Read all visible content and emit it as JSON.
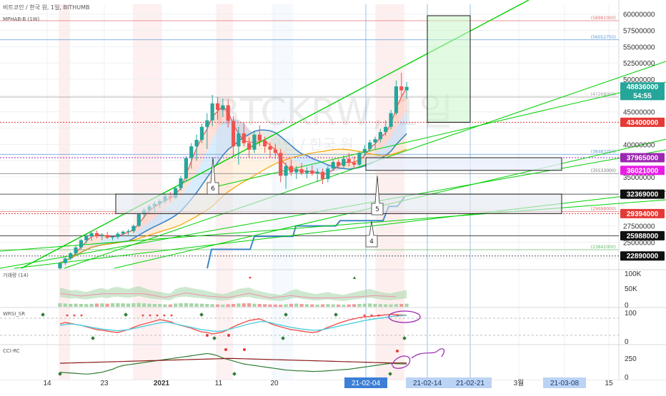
{
  "header": {
    "symbol_line": "비트코인 / 한국 원, 1일, BITHUMB",
    "indicator_line": "MPHAB-B (1W)"
  },
  "watermark": {
    "symbol": "BTCKRW, 1일",
    "subtitle": "비트코인 / 한국 원"
  },
  "chart_data": [
    {
      "type": "candlestick",
      "panel": "price",
      "ylim": [
        21000000,
        61500000
      ],
      "y_ticks": [
        22500000,
        25000000,
        27500000,
        30000000,
        32500000,
        35000000,
        37500000,
        40000000,
        42500000,
        45000000,
        47500000,
        50000000,
        52500000,
        55000000,
        57500000,
        60000000
      ],
      "y_tick_labels": [
        "",
        "25000000",
        "27500000",
        "",
        "",
        "35000000",
        "",
        "40000000",
        "",
        "45000000",
        "47500000",
        "50000000",
        "52500000",
        "55000000",
        "57500000",
        "60000000"
      ],
      "x_tick_labels": [
        "14",
        "23",
        "2021",
        "11",
        "20",
        "21-02-04",
        "21-02-14",
        "21-02-21",
        "3월",
        "21-03-08",
        "15"
      ],
      "candles": [
        {
          "o": 21000000,
          "h": 22000000,
          "l": 20800000,
          "c": 21800000
        },
        {
          "o": 21800000,
          "h": 22800000,
          "l": 21500000,
          "c": 22500000
        },
        {
          "o": 22500000,
          "h": 23500000,
          "l": 22200000,
          "c": 23300000
        },
        {
          "o": 23300000,
          "h": 24500000,
          "l": 23000000,
          "c": 24200000
        },
        {
          "o": 24200000,
          "h": 25500000,
          "l": 23800000,
          "c": 25300000
        },
        {
          "o": 25300000,
          "h": 26200000,
          "l": 24800000,
          "c": 25900000
        },
        {
          "o": 25900000,
          "h": 26700000,
          "l": 25200000,
          "c": 26400000
        },
        {
          "o": 26400000,
          "h": 26800000,
          "l": 25600000,
          "c": 25900000
        },
        {
          "o": 25900000,
          "h": 26400000,
          "l": 25300000,
          "c": 26100000
        },
        {
          "o": 26100000,
          "h": 26600000,
          "l": 25500000,
          "c": 25700000
        },
        {
          "o": 25700000,
          "h": 26000000,
          "l": 25300000,
          "c": 25800000
        },
        {
          "o": 25800000,
          "h": 26600000,
          "l": 25500000,
          "c": 26300000
        },
        {
          "o": 26300000,
          "h": 26800000,
          "l": 25900000,
          "c": 26600000
        },
        {
          "o": 26600000,
          "h": 27000000,
          "l": 26100000,
          "c": 26700000
        },
        {
          "o": 26700000,
          "h": 27700000,
          "l": 26400000,
          "c": 27500000
        },
        {
          "o": 27500000,
          "h": 29500000,
          "l": 27300000,
          "c": 29300000
        },
        {
          "o": 29300000,
          "h": 30300000,
          "l": 28700000,
          "c": 29900000
        },
        {
          "o": 29900000,
          "h": 30800000,
          "l": 29400000,
          "c": 30500000
        },
        {
          "o": 30500000,
          "h": 31300000,
          "l": 29600000,
          "c": 30900000
        },
        {
          "o": 30900000,
          "h": 31600000,
          "l": 30300000,
          "c": 31300000
        },
        {
          "o": 31300000,
          "h": 32300000,
          "l": 30900000,
          "c": 32100000
        },
        {
          "o": 32100000,
          "h": 32700000,
          "l": 31100000,
          "c": 31800000
        },
        {
          "o": 31800000,
          "h": 33500000,
          "l": 31600000,
          "c": 33300000
        },
        {
          "o": 33300000,
          "h": 35200000,
          "l": 32900000,
          "c": 34800000
        },
        {
          "o": 34800000,
          "h": 38200000,
          "l": 34300000,
          "c": 37900000
        },
        {
          "o": 37900000,
          "h": 40200000,
          "l": 36300000,
          "c": 39700000
        },
        {
          "o": 39700000,
          "h": 41500000,
          "l": 37500000,
          "c": 40700000
        },
        {
          "o": 40700000,
          "h": 43200000,
          "l": 40200000,
          "c": 42700000
        },
        {
          "o": 42700000,
          "h": 44800000,
          "l": 39300000,
          "c": 43700000
        },
        {
          "o": 43700000,
          "h": 47600000,
          "l": 42800000,
          "c": 46300000
        },
        {
          "o": 46300000,
          "h": 47300000,
          "l": 43800000,
          "c": 45300000
        },
        {
          "o": 45300000,
          "h": 47000000,
          "l": 44200000,
          "c": 46000000
        },
        {
          "o": 46000000,
          "h": 46900000,
          "l": 42600000,
          "c": 43600000
        },
        {
          "o": 43600000,
          "h": 44300000,
          "l": 38100000,
          "c": 39700000
        },
        {
          "o": 39700000,
          "h": 42700000,
          "l": 36900000,
          "c": 41700000
        },
        {
          "o": 41700000,
          "h": 43300000,
          "l": 39700000,
          "c": 40200000
        },
        {
          "o": 40200000,
          "h": 41100000,
          "l": 37900000,
          "c": 39200000
        },
        {
          "o": 39200000,
          "h": 42100000,
          "l": 38700000,
          "c": 41500000
        },
        {
          "o": 41500000,
          "h": 42900000,
          "l": 39700000,
          "c": 40600000
        },
        {
          "o": 40600000,
          "h": 41200000,
          "l": 38700000,
          "c": 39700000
        },
        {
          "o": 39700000,
          "h": 40300000,
          "l": 37900000,
          "c": 39200000
        },
        {
          "o": 39200000,
          "h": 40100000,
          "l": 37800000,
          "c": 38700000
        },
        {
          "o": 38700000,
          "h": 39300000,
          "l": 34200000,
          "c": 35200000
        },
        {
          "o": 35200000,
          "h": 37200000,
          "l": 33200000,
          "c": 36700000
        },
        {
          "o": 36700000,
          "h": 37700000,
          "l": 35200000,
          "c": 35700000
        },
        {
          "o": 35700000,
          "h": 36700000,
          "l": 34700000,
          "c": 36200000
        },
        {
          "o": 36200000,
          "h": 37200000,
          "l": 35300000,
          "c": 35600000
        },
        {
          "o": 35600000,
          "h": 36500000,
          "l": 34800000,
          "c": 36000000
        },
        {
          "o": 36000000,
          "h": 36800000,
          "l": 35200000,
          "c": 35500000
        },
        {
          "o": 35500000,
          "h": 36300000,
          "l": 34200000,
          "c": 35800000
        },
        {
          "o": 35800000,
          "h": 36300000,
          "l": 33900000,
          "c": 34700000
        },
        {
          "o": 34700000,
          "h": 36700000,
          "l": 34200000,
          "c": 36300000
        },
        {
          "o": 36300000,
          "h": 37800000,
          "l": 35900000,
          "c": 37300000
        },
        {
          "o": 37300000,
          "h": 37700000,
          "l": 36300000,
          "c": 36700000
        },
        {
          "o": 36700000,
          "h": 38300000,
          "l": 36400000,
          "c": 37800000
        },
        {
          "o": 37800000,
          "h": 38700000,
          "l": 36600000,
          "c": 37200000
        },
        {
          "o": 37200000,
          "h": 38200000,
          "l": 36300000,
          "c": 36900000
        },
        {
          "o": 36900000,
          "h": 38900000,
          "l": 36700000,
          "c": 38700000
        },
        {
          "o": 38700000,
          "h": 39900000,
          "l": 38200000,
          "c": 39300000
        },
        {
          "o": 39300000,
          "h": 40700000,
          "l": 38900000,
          "c": 40300000
        },
        {
          "o": 40300000,
          "h": 41200000,
          "l": 39300000,
          "c": 40800000
        },
        {
          "o": 40800000,
          "h": 42400000,
          "l": 40300000,
          "c": 41900000
        },
        {
          "o": 41900000,
          "h": 43700000,
          "l": 41300000,
          "c": 42700000
        },
        {
          "o": 42700000,
          "h": 45300000,
          "l": 42300000,
          "c": 44800000
        },
        {
          "o": 44800000,
          "h": 49800000,
          "l": 44500000,
          "c": 48900000
        },
        {
          "o": 48900000,
          "h": 51000000,
          "l": 47200000,
          "c": 48300000
        },
        {
          "o": 48300000,
          "h": 49600000,
          "l": 47000000,
          "c": 48836000
        }
      ],
      "price_labels": [
        {
          "value": 48836000,
          "text": "48836000",
          "color": "#26a69a"
        },
        {
          "value": 47500000,
          "text": "54:55",
          "color": "#26a69a"
        },
        {
          "value": 43400000,
          "text": "43400000",
          "color": "#e53935"
        },
        {
          "value": 37965000,
          "text": "37965000",
          "color": "#9c27b0"
        },
        {
          "value": 36021000,
          "text": "36021000",
          "color": "#e91ee6"
        },
        {
          "value": 32369000,
          "text": "32369000",
          "color": "#111111"
        },
        {
          "value": 29394000,
          "text": "29394000",
          "color": "#e53935"
        },
        {
          "value": 25988000,
          "text": "25988000",
          "color": "#111111"
        },
        {
          "value": 22890000,
          "text": "22890000",
          "color": "#111111"
        }
      ],
      "level_notes": [
        "(58981000)",
        "(56052750)",
        "(47268000)",
        "(38483250)",
        "(35533000)",
        "(29698000)",
        "(23842000)"
      ],
      "annotations": [
        "6",
        "5",
        "4"
      ]
    },
    {
      "type": "bar",
      "panel": "volume",
      "title": "거래량 (14)",
      "y_tick_labels": [
        "100K",
        "50K",
        "0"
      ],
      "values": [
        60,
        55,
        50,
        52,
        48,
        45,
        50,
        55,
        58,
        52,
        60,
        62,
        58,
        55,
        60,
        65,
        58,
        52,
        48,
        45,
        42,
        40,
        55,
        60,
        62,
        58,
        55,
        52,
        48,
        44,
        40,
        38,
        42,
        48,
        55,
        58,
        60,
        52,
        48,
        44,
        40,
        38,
        35,
        42,
        50,
        55,
        48,
        44,
        40,
        38,
        42,
        45,
        40,
        38,
        35,
        40,
        44,
        48,
        52,
        55,
        50,
        45,
        42,
        40,
        45,
        48,
        52
      ]
    },
    {
      "type": "line",
      "panel": "wrsi",
      "title": "WRSI_SR",
      "y_tick_labels": [
        "100",
        "0"
      ],
      "series": [
        {
          "values": [
            60,
            65,
            62,
            58,
            55,
            50,
            45,
            40,
            38,
            35,
            32,
            30,
            35,
            40,
            48,
            55,
            60,
            65,
            70,
            75,
            72,
            68,
            60,
            55,
            50,
            45,
            38,
            32,
            30,
            25,
            28,
            32,
            40,
            50,
            58,
            65,
            72,
            75,
            78,
            70,
            62,
            55,
            50,
            45,
            40,
            38,
            35,
            32,
            30,
            32,
            40,
            48,
            55,
            62,
            68,
            74,
            78,
            82,
            85,
            86,
            88,
            90,
            92,
            94,
            92,
            91,
            90
          ]
        },
        {
          "values": [
            55,
            58,
            60,
            58,
            55,
            52,
            48,
            45,
            42,
            40,
            38,
            36,
            38,
            40,
            44,
            48,
            52,
            56,
            60,
            64,
            66,
            64,
            60,
            56,
            52,
            48,
            44,
            40,
            38,
            35,
            34,
            36,
            40,
            45,
            50,
            55,
            60,
            64,
            68,
            68,
            65,
            60,
            56,
            52,
            48,
            45,
            42,
            40,
            38,
            38,
            40,
            44,
            48,
            52,
            56,
            60,
            64,
            68,
            72,
            75,
            78,
            80,
            83,
            86,
            88,
            89,
            90
          ]
        }
      ]
    },
    {
      "type": "line",
      "panel": "cci",
      "title": "CCI-RC",
      "y_tick_labels": [
        "250",
        "0"
      ],
      "series": [
        {
          "values": [
            60,
            55,
            50,
            45,
            40,
            35,
            40,
            50,
            60,
            80,
            100,
            130,
            150,
            160,
            170,
            180,
            190,
            200,
            210,
            220,
            230,
            240,
            250,
            260,
            270,
            280,
            290,
            300,
            310,
            300,
            280,
            250,
            230,
            210,
            190,
            170,
            160,
            150,
            140,
            130,
            120,
            110,
            100,
            90,
            85,
            80,
            78,
            75,
            70,
            72,
            75,
            80,
            85,
            90,
            95,
            100,
            110,
            120,
            130,
            140,
            150,
            160,
            170,
            180,
            175,
            172,
            170
          ]
        },
        {
          "values": [
            180,
            182,
            184,
            186,
            188,
            190,
            192,
            194,
            196,
            198,
            200,
            202,
            204,
            206,
            208,
            210,
            212,
            214,
            216,
            218,
            220,
            222,
            224,
            226,
            228,
            230,
            232,
            234,
            236,
            238,
            240,
            242,
            244,
            244,
            242,
            240,
            238,
            236,
            234,
            232,
            230,
            228,
            226,
            224,
            222,
            220,
            218,
            216,
            214,
            212,
            210,
            208,
            206,
            204,
            202,
            200,
            198,
            196,
            194,
            192,
            190,
            188,
            186,
            184,
            184,
            184,
            184
          ]
        }
      ]
    }
  ],
  "colors": {
    "up": "#26a69a",
    "down": "#ef5350",
    "trend": "#00d000",
    "ma_blue": "#3d85c6",
    "ma_orange": "#f4a300"
  }
}
